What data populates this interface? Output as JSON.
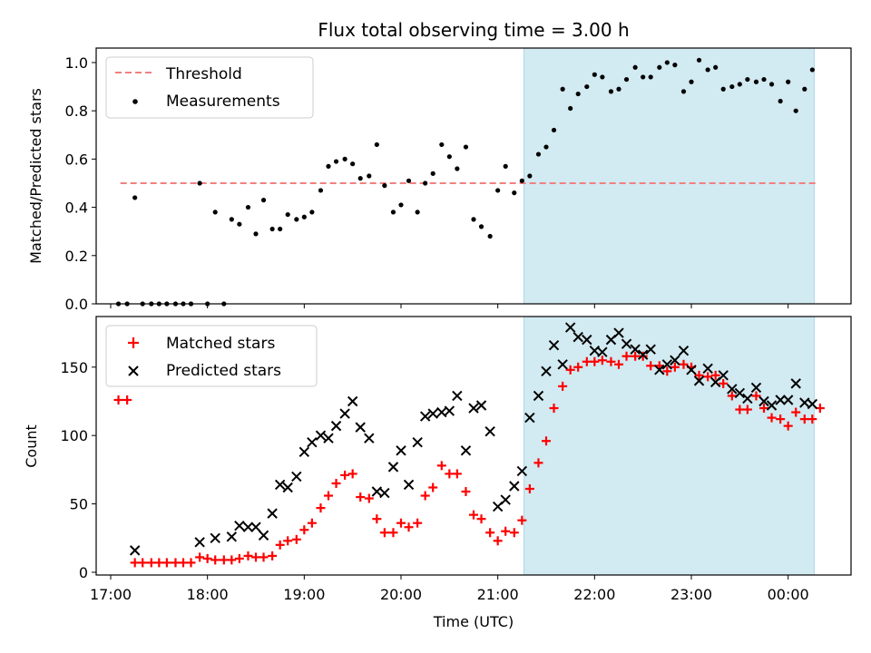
{
  "title": "Flux total observing time = 3.00 h",
  "colors": {
    "threshold": "#f08080",
    "measurement": "#000000",
    "matched": "#ff0000",
    "predicted": "#000000",
    "highlight": "#add8e6"
  },
  "chart_data": [
    {
      "type": "scatter",
      "ylabel": "Matched/Predicted stars",
      "xlabel": "",
      "xlim": [
        16.85,
        24.65
      ],
      "ylim": [
        0,
        1.06
      ],
      "yticks": [
        0.0,
        0.2,
        0.4,
        0.6,
        0.8,
        1.0
      ],
      "ytick_labels": [
        "0.0",
        "0.2",
        "0.4",
        "0.6",
        "0.8",
        "1.0"
      ],
      "highlight": {
        "x0": 21.27,
        "x1": 24.27
      },
      "legend": {
        "placement": "top-left",
        "entries": [
          "Threshold",
          "Measurements"
        ]
      },
      "threshold": {
        "name": "Threshold",
        "y": 0.5,
        "x0": 17.1,
        "x1": 24.3
      },
      "series": [
        {
          "name": "Measurements",
          "marker": "dot",
          "points": [
            [
              17.08,
              0.0
            ],
            [
              17.17,
              0.0
            ],
            [
              17.25,
              0.44
            ],
            [
              17.33,
              0.0
            ],
            [
              17.42,
              0.0
            ],
            [
              17.5,
              0.0
            ],
            [
              17.58,
              0.0
            ],
            [
              17.67,
              0.0
            ],
            [
              17.75,
              0.0
            ],
            [
              17.83,
              0.0
            ],
            [
              17.92,
              0.5
            ],
            [
              18.0,
              0.0
            ],
            [
              18.08,
              0.38
            ],
            [
              18.17,
              0.0
            ],
            [
              18.25,
              0.35
            ],
            [
              18.33,
              0.33
            ],
            [
              18.42,
              0.4
            ],
            [
              18.5,
              0.29
            ],
            [
              18.58,
              0.43
            ],
            [
              18.67,
              0.31
            ],
            [
              18.75,
              0.31
            ],
            [
              18.83,
              0.37
            ],
            [
              18.92,
              0.35
            ],
            [
              19.0,
              0.36
            ],
            [
              19.08,
              0.38
            ],
            [
              19.17,
              0.47
            ],
            [
              19.25,
              0.57
            ],
            [
              19.33,
              0.59
            ],
            [
              19.42,
              0.6
            ],
            [
              19.5,
              0.58
            ],
            [
              19.58,
              0.52
            ],
            [
              19.67,
              0.53
            ],
            [
              19.75,
              0.66
            ],
            [
              19.83,
              0.49
            ],
            [
              19.92,
              0.38
            ],
            [
              20.0,
              0.41
            ],
            [
              20.08,
              0.51
            ],
            [
              20.17,
              0.38
            ],
            [
              20.25,
              0.5
            ],
            [
              20.33,
              0.54
            ],
            [
              20.42,
              0.66
            ],
            [
              20.5,
              0.61
            ],
            [
              20.58,
              0.56
            ],
            [
              20.67,
              0.65
            ],
            [
              20.75,
              0.35
            ],
            [
              20.83,
              0.32
            ],
            [
              20.92,
              0.28
            ],
            [
              21.0,
              0.47
            ],
            [
              21.08,
              0.57
            ],
            [
              21.17,
              0.46
            ],
            [
              21.25,
              0.51
            ],
            [
              21.33,
              0.53
            ],
            [
              21.42,
              0.62
            ],
            [
              21.5,
              0.65
            ],
            [
              21.58,
              0.72
            ],
            [
              21.67,
              0.89
            ],
            [
              21.75,
              0.81
            ],
            [
              21.83,
              0.87
            ],
            [
              21.92,
              0.9
            ],
            [
              22.0,
              0.95
            ],
            [
              22.08,
              0.94
            ],
            [
              22.17,
              0.88
            ],
            [
              22.25,
              0.89
            ],
            [
              22.33,
              0.93
            ],
            [
              22.42,
              0.98
            ],
            [
              22.5,
              0.94
            ],
            [
              22.58,
              0.94
            ],
            [
              22.67,
              0.98
            ],
            [
              22.75,
              1.0
            ],
            [
              22.83,
              0.99
            ],
            [
              22.92,
              0.88
            ],
            [
              23.0,
              0.92
            ],
            [
              23.08,
              1.01
            ],
            [
              23.17,
              0.97
            ],
            [
              23.25,
              0.98
            ],
            [
              23.33,
              0.89
            ],
            [
              23.42,
              0.9
            ],
            [
              23.5,
              0.91
            ],
            [
              23.58,
              0.93
            ],
            [
              23.67,
              0.92
            ],
            [
              23.75,
              0.93
            ],
            [
              23.83,
              0.91
            ],
            [
              23.92,
              0.84
            ],
            [
              24.0,
              0.92
            ],
            [
              24.08,
              0.8
            ],
            [
              24.17,
              0.89
            ],
            [
              24.25,
              0.97
            ]
          ]
        }
      ]
    },
    {
      "type": "scatter",
      "ylabel": "Count",
      "xlabel": "Time (UTC)",
      "xlim": [
        16.85,
        24.65
      ],
      "ylim": [
        -2,
        187
      ],
      "yticks": [
        0,
        50,
        100,
        150
      ],
      "ytick_labels": [
        "0",
        "50",
        "100",
        "150"
      ],
      "xticks": [
        17,
        18,
        19,
        20,
        21,
        22,
        23,
        24
      ],
      "xtick_labels": [
        "17:00",
        "18:00",
        "19:00",
        "20:00",
        "21:00",
        "22:00",
        "23:00",
        "00:00"
      ],
      "highlight": {
        "x0": 21.27,
        "x1": 24.27
      },
      "legend": {
        "placement": "top-left",
        "entries": [
          "Matched stars",
          "Predicted stars"
        ]
      },
      "series": [
        {
          "name": "Matched stars",
          "marker": "plus",
          "points": [
            [
              17.08,
              126
            ],
            [
              17.17,
              126
            ],
            [
              17.25,
              7
            ],
            [
              17.33,
              7
            ],
            [
              17.42,
              7
            ],
            [
              17.5,
              7
            ],
            [
              17.58,
              7
            ],
            [
              17.67,
              7
            ],
            [
              17.75,
              7
            ],
            [
              17.83,
              7
            ],
            [
              17.92,
              11
            ],
            [
              18.0,
              10
            ],
            [
              18.08,
              9
            ],
            [
              18.17,
              9
            ],
            [
              18.25,
              9
            ],
            [
              18.33,
              10
            ],
            [
              18.42,
              12
            ],
            [
              18.5,
              11
            ],
            [
              18.58,
              11
            ],
            [
              18.67,
              12
            ],
            [
              18.75,
              20
            ],
            [
              18.83,
              23
            ],
            [
              18.92,
              24
            ],
            [
              19.0,
              31
            ],
            [
              19.08,
              36
            ],
            [
              19.17,
              47
            ],
            [
              19.25,
              56
            ],
            [
              19.33,
              65
            ],
            [
              19.42,
              71
            ],
            [
              19.5,
              72
            ],
            [
              19.58,
              55
            ],
            [
              19.67,
              54
            ],
            [
              19.75,
              39
            ],
            [
              19.83,
              29
            ],
            [
              19.92,
              29
            ],
            [
              20.0,
              36
            ],
            [
              20.08,
              33
            ],
            [
              20.17,
              36
            ],
            [
              20.25,
              56
            ],
            [
              20.33,
              62
            ],
            [
              20.42,
              78
            ],
            [
              20.5,
              72
            ],
            [
              20.58,
              72
            ],
            [
              20.67,
              59
            ],
            [
              20.75,
              42
            ],
            [
              20.83,
              39
            ],
            [
              20.92,
              29
            ],
            [
              21.0,
              23
            ],
            [
              21.08,
              30
            ],
            [
              21.17,
              29
            ],
            [
              21.25,
              38
            ],
            [
              21.33,
              61
            ],
            [
              21.42,
              80
            ],
            [
              21.5,
              96
            ],
            [
              21.58,
              120
            ],
            [
              21.67,
              136
            ],
            [
              21.75,
              148
            ],
            [
              21.83,
              150
            ],
            [
              21.92,
              154
            ],
            [
              22.0,
              154
            ],
            [
              22.08,
              155
            ],
            [
              22.17,
              154
            ],
            [
              22.25,
              152
            ],
            [
              22.33,
              158
            ],
            [
              22.42,
              158
            ],
            [
              22.5,
              158
            ],
            [
              22.58,
              151
            ],
            [
              22.67,
              151
            ],
            [
              22.75,
              147
            ],
            [
              22.83,
              150
            ],
            [
              22.92,
              152
            ],
            [
              23.0,
              150
            ],
            [
              23.08,
              144
            ],
            [
              23.17,
              143
            ],
            [
              23.25,
              144
            ],
            [
              23.33,
              138
            ],
            [
              23.42,
              129
            ],
            [
              23.5,
              119
            ],
            [
              23.58,
              119
            ],
            [
              23.67,
              129
            ],
            [
              23.75,
              120
            ],
            [
              23.83,
              113
            ],
            [
              23.92,
              112
            ],
            [
              24.0,
              107
            ],
            [
              24.08,
              117
            ],
            [
              24.17,
              112
            ],
            [
              24.25,
              112
            ],
            [
              24.33,
              120
            ]
          ]
        },
        {
          "name": "Predicted stars",
          "marker": "x",
          "points": [
            [
              17.25,
              16
            ],
            [
              17.92,
              22
            ],
            [
              18.08,
              25
            ],
            [
              18.25,
              26
            ],
            [
              18.33,
              34
            ],
            [
              18.42,
              33
            ],
            [
              18.5,
              33
            ],
            [
              18.58,
              27
            ],
            [
              18.67,
              43
            ],
            [
              18.75,
              64
            ],
            [
              18.83,
              62
            ],
            [
              18.92,
              70
            ],
            [
              19.0,
              88
            ],
            [
              19.08,
              95
            ],
            [
              19.17,
              100
            ],
            [
              19.25,
              98
            ],
            [
              19.33,
              107
            ],
            [
              19.42,
              116
            ],
            [
              19.5,
              125
            ],
            [
              19.58,
              106
            ],
            [
              19.67,
              98
            ],
            [
              19.75,
              59
            ],
            [
              19.83,
              58
            ],
            [
              19.92,
              77
            ],
            [
              20.0,
              89
            ],
            [
              20.08,
              64
            ],
            [
              20.17,
              95
            ],
            [
              20.25,
              114
            ],
            [
              20.33,
              116
            ],
            [
              20.42,
              117
            ],
            [
              20.5,
              118
            ],
            [
              20.58,
              129
            ],
            [
              20.67,
              89
            ],
            [
              20.75,
              120
            ],
            [
              20.83,
              122
            ],
            [
              20.92,
              103
            ],
            [
              21.0,
              48
            ],
            [
              21.08,
              53
            ],
            [
              21.17,
              63
            ],
            [
              21.25,
              74
            ],
            [
              21.33,
              113
            ],
            [
              21.42,
              129
            ],
            [
              21.5,
              147
            ],
            [
              21.58,
              166
            ],
            [
              21.67,
              152
            ],
            [
              21.75,
              179
            ],
            [
              21.83,
              172
            ],
            [
              21.92,
              170
            ],
            [
              22.0,
              162
            ],
            [
              22.08,
              161
            ],
            [
              22.17,
              170
            ],
            [
              22.25,
              175
            ],
            [
              22.33,
              167
            ],
            [
              22.42,
              163
            ],
            [
              22.5,
              159
            ],
            [
              22.58,
              163
            ],
            [
              22.67,
              148
            ],
            [
              22.75,
              152
            ],
            [
              22.83,
              155
            ],
            [
              22.92,
              162
            ],
            [
              23.0,
              148
            ],
            [
              23.08,
              140
            ],
            [
              23.17,
              149
            ],
            [
              23.25,
              139
            ],
            [
              23.33,
              144
            ],
            [
              23.42,
              134
            ],
            [
              23.5,
              131
            ],
            [
              23.58,
              127
            ],
            [
              23.67,
              135
            ],
            [
              23.75,
              125
            ],
            [
              23.83,
              122
            ],
            [
              23.92,
              126
            ],
            [
              24.0,
              126
            ],
            [
              24.08,
              138
            ],
            [
              24.17,
              124
            ],
            [
              24.25,
              123
            ]
          ]
        }
      ]
    }
  ]
}
